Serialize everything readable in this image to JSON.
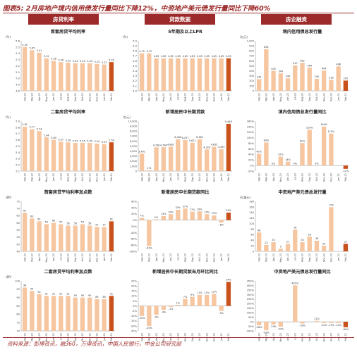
{
  "figure_title": "图表5: 2月房地产境内信用债发行量同比下降12%，中资地产美元债发行量同比下降60%",
  "column_headers": [
    "房贷利率",
    "贷款数据",
    "房企融资"
  ],
  "source_note": "资料来源：彭博资讯，融360，万得资讯，中国人民银行，中金公司研究部",
  "colors": {
    "bar": "#f6c6a0",
    "highlight": "#c9521c",
    "brand": "#9c2a2a"
  },
  "chart_data": [
    {
      "type": "bar",
      "title": "首套房贷平均利率",
      "unit_label": "(%)",
      "categories": [
        "Feb-20",
        "Mar-20",
        "Apr-20",
        "May-20",
        "Jun-20",
        "Jul-20",
        "Aug-20",
        "Sep-20",
        "Oct-20",
        "Nov-20",
        "Dec-20",
        "Jan-21",
        "Feb-21"
      ],
      "values": [
        5.5,
        5.45,
        5.41,
        5.32,
        5.28,
        5.26,
        5.25,
        5.24,
        5.24,
        5.24,
        5.23,
        5.22,
        5.26
      ],
      "data_labels": [
        "5.50",
        "5.45",
        "5.41",
        "5.32",
        "5.28",
        "5.26",
        "5.25",
        "5.24",
        "5.24",
        "5.24",
        "5.23",
        "5.22",
        "5.26"
      ],
      "ylim": [
        4.8,
        5.6
      ],
      "yticks": [
        "4.8",
        "4.9",
        "5.0",
        "5.1",
        "5.2",
        "5.3",
        "5.4",
        "5.5",
        "5.6"
      ],
      "highlight_last": true
    },
    {
      "type": "bar",
      "title": "5年期及以上LPR",
      "unit_label": "(%)",
      "categories": [
        "Feb-20",
        "Mar-20",
        "Apr-20",
        "May-20",
        "Jun-20",
        "Jul-20",
        "Aug-20",
        "Sep-20",
        "Oct-20",
        "Nov-20",
        "Dec-20",
        "Jan-21",
        "Feb-21"
      ],
      "values": [
        4.75,
        4.75,
        4.65,
        4.65,
        4.65,
        4.65,
        4.65,
        4.65,
        4.65,
        4.65,
        4.65,
        4.65,
        4.65
      ],
      "data_labels": [
        "4.75",
        "4.75",
        "4.65",
        "4.65",
        "4.65",
        "4.65",
        "4.65",
        "4.65",
        "4.65",
        "4.65",
        "4.65",
        "4.65",
        "4.65"
      ],
      "ylim": [
        4.0,
        5.0
      ],
      "yticks": [
        "4.0",
        "4.1",
        "4.2",
        "4.3",
        "4.4",
        "4.5",
        "4.6",
        "4.7",
        "4.8",
        "4.9",
        "5.0"
      ],
      "highlight_last": true
    },
    {
      "type": "bar",
      "title": "境内信用债总发行量",
      "unit_label": "(亿元)",
      "categories": [
        "Feb-20",
        "Mar-20",
        "Apr-20",
        "May-20",
        "Jun-20",
        "Jul-20",
        "Aug-20",
        "Sep-20",
        "Oct-20",
        "Nov-20",
        "Dec-20",
        "Jan-21",
        "Feb-21"
      ],
      "values": [
        234,
        833,
        400,
        349,
        249,
        510,
        562,
        464,
        240,
        404,
        218,
        488,
        205
      ],
      "data_labels": [
        "234",
        "833",
        "400",
        "349",
        "249",
        "510",
        "562",
        "464",
        "240",
        "404",
        "218",
        "488",
        "205"
      ],
      "ylim": [
        0,
        1000
      ],
      "yticks": [
        "0",
        "100",
        "200",
        "300",
        "400",
        "500",
        "600",
        "700",
        "800",
        "900",
        "1,000"
      ],
      "highlight_last": true
    },
    {
      "type": "bar",
      "title": "二套房贷平均利率",
      "unit_label": "(%)",
      "categories": [
        "Feb-20",
        "Mar-20",
        "Apr-20",
        "May-20",
        "Jun-20",
        "Jul-20",
        "Aug-20",
        "Sep-20",
        "Oct-20",
        "Nov-20",
        "Dec-20",
        "Jan-21",
        "Feb-21"
      ],
      "values": [
        5.81,
        5.77,
        5.74,
        5.64,
        5.6,
        5.57,
        5.56,
        5.55,
        5.55,
        5.55,
        5.54,
        5.53,
        5.56
      ],
      "data_labels": [
        "5.81",
        "5.77",
        "5.74",
        "5.64",
        "5.60",
        "5.57",
        "5.56",
        "5.55",
        "5.55",
        "5.55",
        "5.54",
        "5.53",
        "5.56"
      ],
      "ylim": [
        5.1,
        5.9
      ],
      "yticks": [
        "5.1",
        "5.2",
        "5.3",
        "5.4",
        "5.5",
        "5.6",
        "5.7",
        "5.8",
        "5.9"
      ],
      "highlight_last": true
    },
    {
      "type": "bar",
      "title": "新增居民中长期贷款",
      "unit_label": "(亿元)",
      "categories": [
        "Feb-20",
        "Mar-20",
        "Apr-20",
        "May-20",
        "Jun-20",
        "Jul-20",
        "Aug-20",
        "Sep-20",
        "Oct-20",
        "Nov-20",
        "Dec-20",
        "Jan-21",
        "Feb-21"
      ],
      "values": [
        3491,
        171,
        4738,
        4766,
        4881,
        6340,
        6207,
        5671,
        6362,
        4329,
        4855,
        4392,
        9448
      ],
      "data_labels": [
        "3,491",
        "171",
        "4,738",
        "4,766",
        "4,881",
        "6,340",
        "6,207",
        "5,671",
        "6,362",
        "4,329",
        "4,855",
        "4,392",
        "9,448"
      ],
      "ylim": [
        0,
        10000
      ],
      "yticks": [
        "0",
        "1,000",
        "2,000",
        "3,000",
        "4,000",
        "5,000",
        "6,000",
        "7,000",
        "8,000",
        "9,000",
        "10,000"
      ],
      "highlight_last": true
    },
    {
      "type": "bar",
      "title": "境内信用债总发行量同比",
      "unit_label": "",
      "categories": [
        "Feb-20",
        "Mar-20",
        "Apr-20",
        "May-20",
        "Jun-20",
        "Jul-20",
        "Aug-20",
        "Sep-20",
        "Oct-20",
        "Nov-20",
        "Dec-20",
        "Jan-21",
        "Feb-21"
      ],
      "values": [
        42,
        83,
        0,
        32,
        14,
        0,
        81,
        129,
        0,
        140,
        115,
        0,
        -12
      ],
      "data_labels": [
        "42%",
        "83%",
        "0%",
        "32%",
        "14%",
        "0%",
        "81%",
        "129%",
        "0%",
        "140%",
        "115%",
        "",
        "-12%"
      ],
      "ylim": [
        -20,
        160
      ],
      "yticks": [
        "-20%",
        "0%",
        "20%",
        "40%",
        "60%",
        "80%",
        "100%",
        "120%",
        "140%",
        "160%"
      ],
      "highlight_last": true
    },
    {
      "type": "bar",
      "title": "首套房贷平均利率加点数",
      "unit_label": "(BP)",
      "categories": [
        "Feb-20",
        "Mar-20",
        "Apr-20",
        "May-20",
        "Jun-20",
        "Jul-20",
        "Aug-20",
        "Sep-20",
        "Oct-20",
        "Nov-20",
        "Dec-20",
        "Jan-21",
        "Feb-21"
      ],
      "values": [
        67,
        63,
        61,
        59,
        60,
        59,
        58,
        58,
        59,
        58,
        57,
        57,
        61
      ],
      "data_labels": [
        "67",
        "63",
        "61",
        "59",
        "60",
        "59",
        "58",
        "58",
        "59",
        "58",
        "57",
        "57",
        "61"
      ],
      "ylim": [
        40,
        75
      ],
      "yticks": [
        "40",
        "45",
        "50",
        "55",
        "60",
        "65",
        "70",
        "75"
      ],
      "highlight_last": true
    },
    {
      "type": "bar",
      "title": "新增居民中长期贷款同比",
      "unit_label": "",
      "categories": [
        "Feb-20",
        "Mar-20",
        "Apr-20",
        "May-20",
        "Jun-20",
        "Jul-20",
        "Aug-20",
        "Sep-20",
        "Oct-20",
        "Nov-20",
        "Dec-20",
        "Jan-21",
        "Feb-21"
      ],
      "values": [
        7,
        -83,
        2,
        13,
        19,
        33,
        37,
        27,
        28,
        19,
        15,
        -8,
        24
      ],
      "data_labels": [
        "7%",
        "-83%",
        "2%",
        "13%",
        "19%",
        "33%",
        "37%",
        "27%",
        "28%",
        "19%",
        "15%",
        "-8%",
        "24%"
      ],
      "ylim": [
        -100,
        60
      ],
      "yticks": [
        "-100%",
        "-80%",
        "-60%",
        "-40%",
        "-20%",
        "0%",
        "20%",
        "40%",
        "60%"
      ],
      "highlight_last": true
    },
    {
      "type": "bar",
      "title": "中资地产美元债总发行量",
      "unit_label": "(亿美元)",
      "categories": [
        "Feb-20",
        "Mar-20",
        "Apr-20",
        "May-20",
        "Jun-20",
        "Jul-20",
        "Aug-20",
        "Sep-20",
        "Oct-20",
        "Nov-20",
        "Dec-20",
        "Jan-21",
        "Feb-21"
      ],
      "values": [
        68,
        23,
        33,
        9,
        27,
        78,
        33,
        53,
        38,
        20,
        159,
        0,
        27
      ],
      "data_labels": [
        "68",
        "23",
        "33",
        "9",
        "27",
        "78",
        "33",
        "53",
        "38",
        "20",
        "159",
        "",
        "27"
      ],
      "ylim": [
        0,
        180
      ],
      "yticks": [
        "0",
        "20",
        "40",
        "60",
        "80",
        "100",
        "120",
        "140",
        "160",
        "180"
      ],
      "highlight_last": true
    },
    {
      "type": "bar",
      "title": "二套房贷平均利率加点数",
      "unit_label": "(BP)",
      "categories": [
        "Feb-20",
        "Mar-20",
        "Apr-20",
        "May-20",
        "Jun-20",
        "Jul-20",
        "Aug-20",
        "Sep-20",
        "Oct-20",
        "Nov-20",
        "Dec-20",
        "Jan-21",
        "Feb-21"
      ],
      "values": [
        96,
        94,
        92,
        91,
        91,
        91,
        91,
        90,
        90,
        90,
        89,
        89,
        91
      ],
      "data_labels": [
        "96",
        "94",
        "92",
        "91",
        "91",
        "91",
        "91",
        "90",
        "90",
        "90",
        "89",
        "89",
        "91"
      ],
      "ylim": [
        70,
        100
      ],
      "yticks": [
        "70",
        "75",
        "80",
        "85",
        "90",
        "95",
        "100"
      ],
      "highlight_last": true
    },
    {
      "type": "bar",
      "title": "新增居民中长期贷款当月环比同比",
      "unit_label": "",
      "categories": [
        "Feb-20",
        "Mar-20",
        "Apr-20",
        "May-20",
        "Jun-20",
        "Jul-20",
        "Aug-20",
        "Sep-20",
        "Oct-20",
        "Nov-20",
        "Dec-20",
        "Jan-21",
        "Feb-21"
      ],
      "values": [
        -10,
        -20,
        -9,
        -4,
        -1,
        1,
        7,
        9,
        11,
        11,
        12,
        -5,
        24
      ],
      "data_labels": [
        "-10%",
        "-20%",
        "-9%",
        "-4%",
        "-1%",
        "1%",
        "7%",
        "9%",
        "11%",
        "11%",
        "12%",
        "-5%",
        "24%"
      ],
      "ylim": [
        -25,
        25
      ],
      "yticks": [
        "-25%",
        "-20%",
        "-15%",
        "-10%",
        "-5%",
        "0%",
        "5%",
        "10%",
        "15%",
        "20%",
        "25%"
      ],
      "highlight_last": true
    },
    {
      "type": "bar",
      "title": "中资地产美元债总发行量同比",
      "unit_label": "",
      "categories": [
        "Feb-20",
        "Mar-20",
        "Apr-20",
        "May-20",
        "Jun-20",
        "Jul-20",
        "Aug-20",
        "Sep-20",
        "Oct-20",
        "Nov-20",
        "Dec-20",
        "Jan-21",
        "Feb-21"
      ],
      "values": [
        -38,
        -93,
        -29,
        -54,
        0,
        401,
        -18,
        0,
        11,
        -14,
        -13,
        -14,
        -60
      ],
      "data_labels": [
        "-38%",
        "-93%",
        "-29%",
        "-54%",
        "",
        "401%",
        "-18%",
        "",
        "11%",
        "-14%",
        "-13%",
        "-14%",
        "-60%"
      ],
      "ylim": [
        -100,
        450
      ],
      "yticks": [
        "-100%",
        "-50%",
        "0%",
        "50%",
        "100%",
        "150%",
        "200%",
        "250%",
        "300%",
        "350%",
        "400%",
        "450%"
      ],
      "highlight_last": true
    }
  ]
}
